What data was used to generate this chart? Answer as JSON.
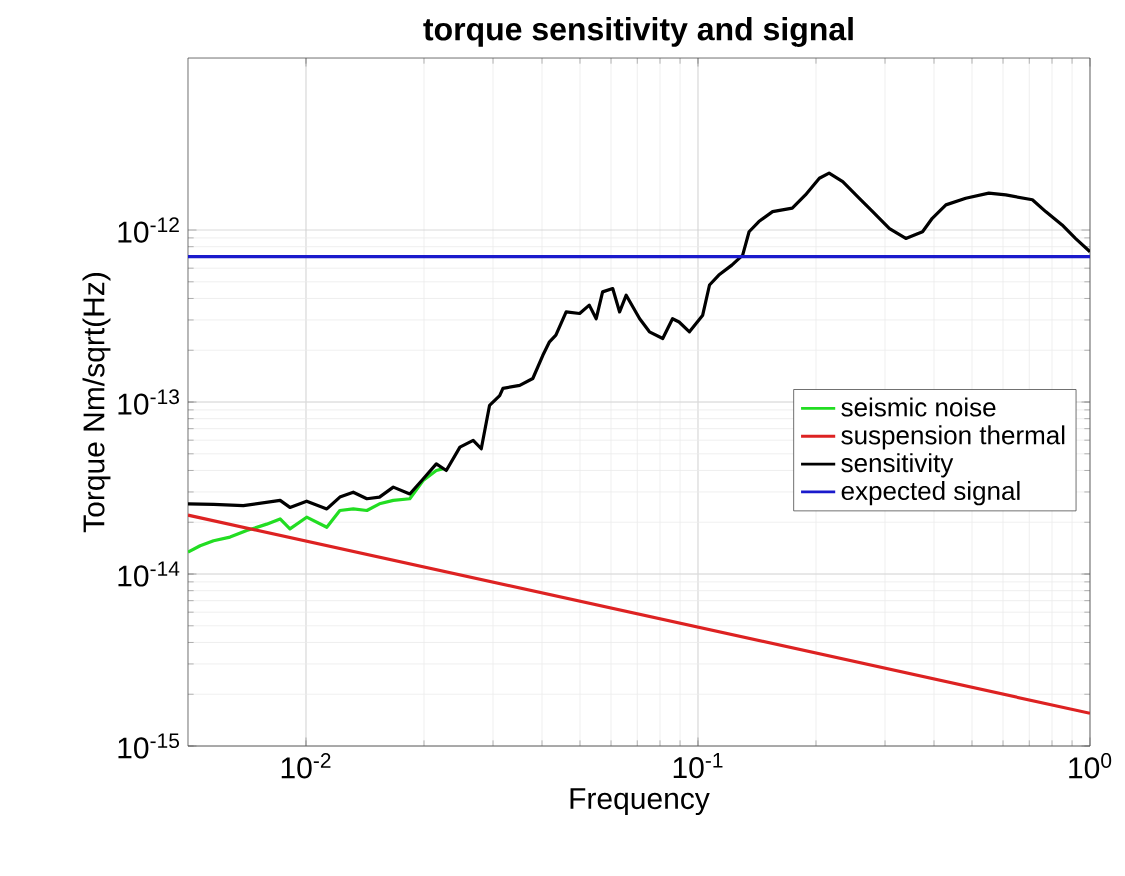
{
  "chart_data": {
    "type": "line",
    "title": "torque sensitivity and signal",
    "xlabel": "Frequency",
    "ylabel": "Torque Nm/sqrt(Hz)",
    "log": "xy",
    "grid": true,
    "legend": "right",
    "line_style": "solid",
    "marker": "none",
    "xlim": [
      0.005,
      1
    ],
    "ylim": [
      1e-15,
      1e-11
    ],
    "xticks": [
      {
        "value": 0.01,
        "label": "10$^{-2}$"
      },
      {
        "value": 0.1,
        "label": "10$^{-1}$"
      },
      {
        "value": 1,
        "label": "10$^{0}$"
      }
    ],
    "yticks": [
      {
        "value": 1e-15,
        "label": "10$^{-15}$"
      },
      {
        "value": 1e-14,
        "label": "10$^{-14}$"
      },
      {
        "value": 1e-13,
        "label": "10$^{-13}$"
      },
      {
        "value": 1e-12,
        "label": "10$^{-12}$"
      }
    ],
    "series": [
      {
        "name": "seismic noise",
        "color": "#22dd22",
        "x": [
          0.005,
          0.00537,
          0.00581,
          0.0064,
          0.00706,
          0.00794,
          0.00859,
          0.0091,
          0.01004,
          0.0113,
          0.0122,
          0.0132,
          0.0143,
          0.0154,
          0.0167,
          0.0184,
          0.0199,
          0.0215,
          0.0224
        ],
        "values": [
          1.34e-14,
          1.46e-14,
          1.56e-14,
          1.64e-14,
          1.79e-14,
          1.95e-14,
          2.09e-14,
          1.83e-14,
          2.14e-14,
          1.87e-14,
          2.34e-14,
          2.39e-14,
          2.34e-14,
          2.56e-14,
          2.68e-14,
          2.74e-14,
          3.5e-14,
          4e-14,
          4.1e-14
        ]
      },
      {
        "name": "suspension thermal",
        "color": "#dd2222",
        "x": [
          0.005,
          1
        ],
        "values": [
          2.2e-14,
          1.55e-15
        ]
      },
      {
        "name": "sensitivity",
        "color": "#000000",
        "x": [
          0.005,
          0.00581,
          0.00692,
          0.00859,
          0.0091,
          0.01004,
          0.0113,
          0.0122,
          0.0132,
          0.0143,
          0.0154,
          0.0167,
          0.0184,
          0.0199,
          0.0215,
          0.0228,
          0.0247,
          0.0267,
          0.028,
          0.0294,
          0.0312,
          0.0318,
          0.0351,
          0.0379,
          0.0402,
          0.0418,
          0.0434,
          0.0461,
          0.0499,
          0.0528,
          0.055,
          0.0571,
          0.0606,
          0.0631,
          0.0656,
          0.071,
          0.0752,
          0.0813,
          0.0861,
          0.0895,
          0.0951,
          0.1028,
          0.107,
          0.113,
          0.122,
          0.13,
          0.135,
          0.143,
          0.155,
          0.174,
          0.188,
          0.204,
          0.216,
          0.234,
          0.258,
          0.279,
          0.308,
          0.339,
          0.374,
          0.396,
          0.429,
          0.482,
          0.552,
          0.61,
          0.713,
          0.771,
          0.849,
          0.918,
          1
        ],
        "values": [
          2.56e-14,
          2.54e-14,
          2.5e-14,
          2.68e-14,
          2.44e-14,
          2.65e-14,
          2.39e-14,
          2.8e-14,
          2.99e-14,
          2.74e-14,
          2.8e-14,
          3.2e-14,
          2.92e-14,
          3.57e-14,
          4.37e-14,
          4e-14,
          5.47e-14,
          5.98e-14,
          5.35e-14,
          9.57e-14,
          1.09e-13,
          1.2e-13,
          1.25e-13,
          1.37e-13,
          1.87e-13,
          2.24e-13,
          2.45e-13,
          3.34e-13,
          3.27e-13,
          3.66e-13,
          3.05e-13,
          4.37e-13,
          4.57e-13,
          3.34e-13,
          4.18e-13,
          3.05e-13,
          2.56e-13,
          2.34e-13,
          3.05e-13,
          2.92e-13,
          2.56e-13,
          3.2e-13,
          4.79e-13,
          5.47e-13,
          6.25e-13,
          7.14e-13,
          9.77e-13,
          1.12e-12,
          1.28e-12,
          1.34e-12,
          1.6e-12,
          2e-12,
          2.14e-12,
          1.91e-12,
          1.53e-12,
          1.28e-12,
          1.02e-12,
          8.94e-13,
          9.77e-13,
          1.17e-12,
          1.4e-12,
          1.53e-12,
          1.64e-12,
          1.6e-12,
          1.5e-12,
          1.28e-12,
          1.07e-12,
          8.94e-13,
          7.48e-13
        ]
      },
      {
        "name": "expected signal",
        "color": "#1a1acc",
        "x": [
          0.005,
          1
        ],
        "values": [
          7e-13,
          7e-13
        ]
      }
    ]
  }
}
